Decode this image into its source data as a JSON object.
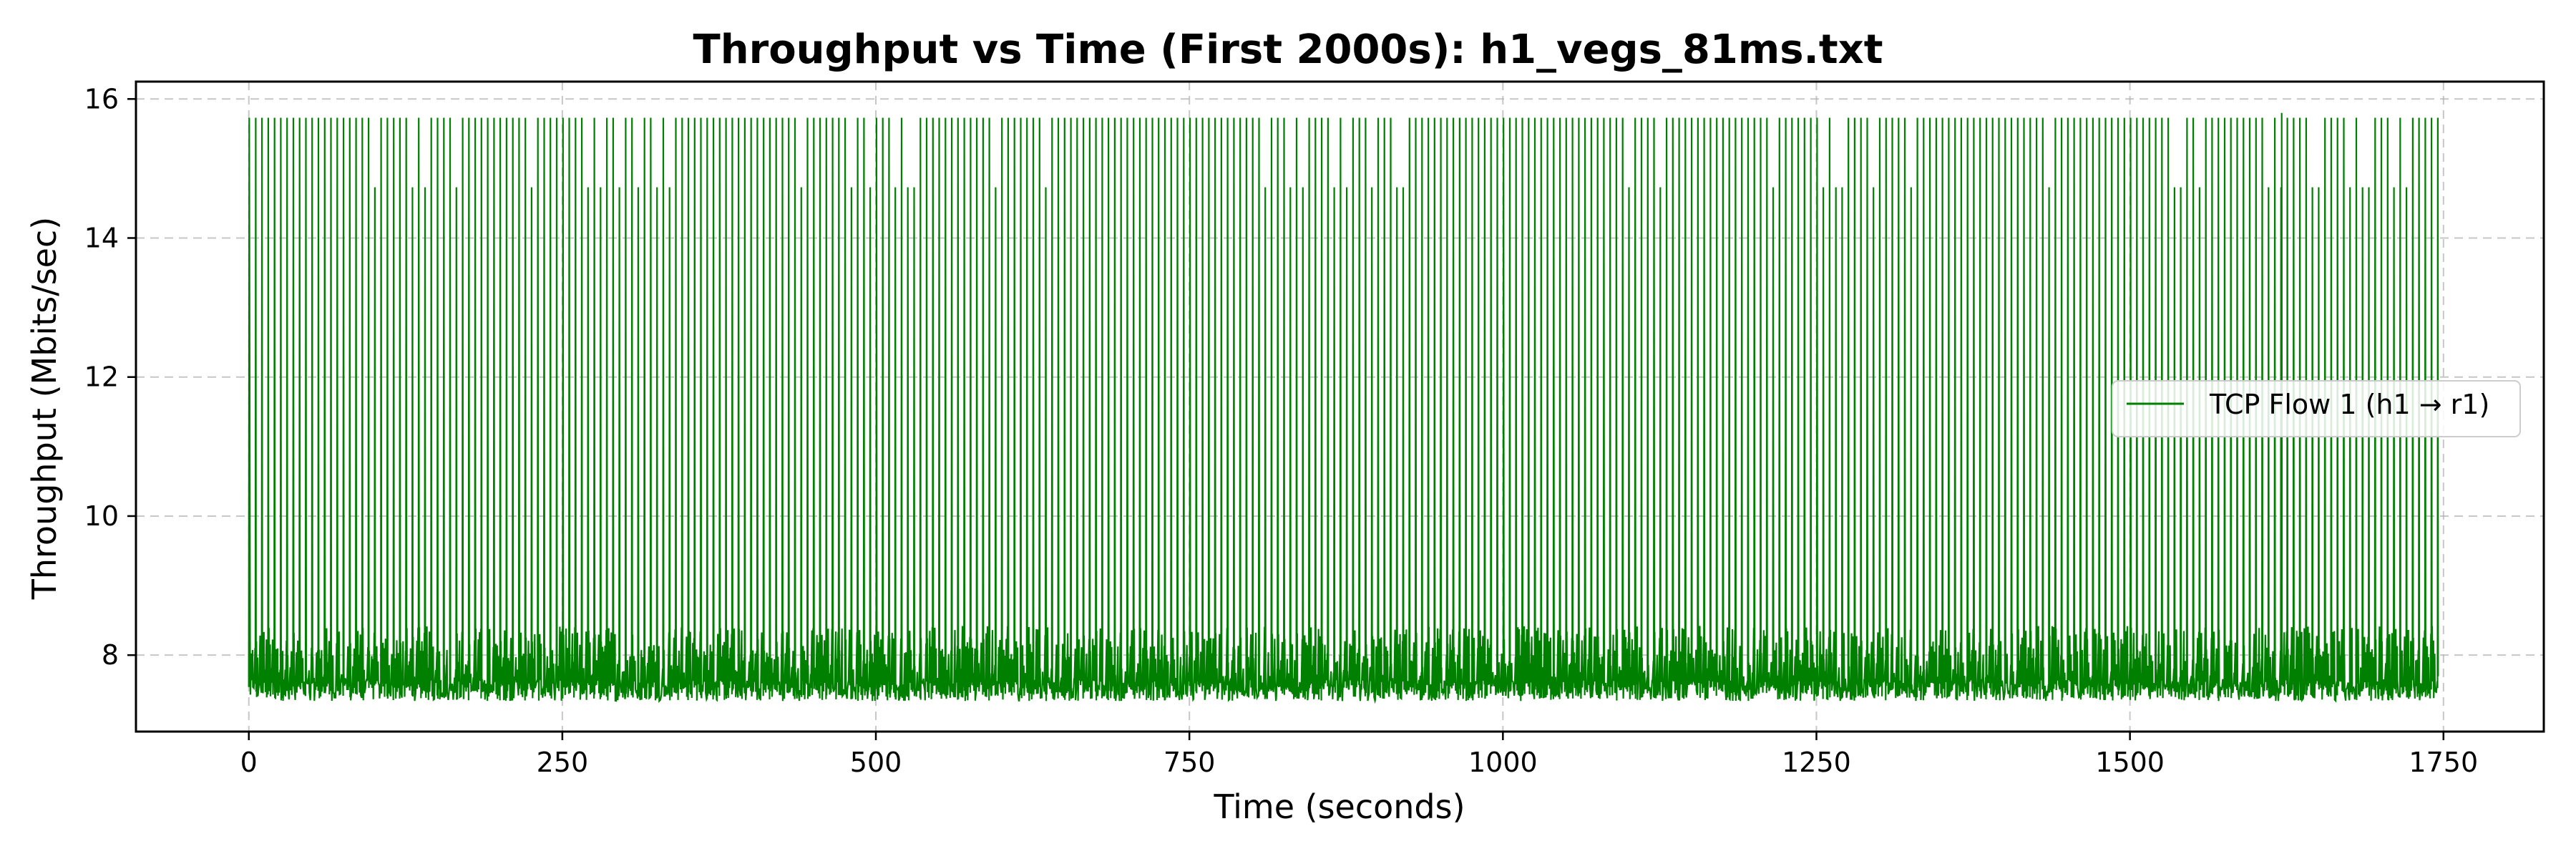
{
  "chart_data": {
    "type": "line",
    "title": "Throughput vs Time (First 2000s): h1_vegs_81ms.txt",
    "xlabel": "Time (seconds)",
    "ylabel": "Throughput (Mbits/sec)",
    "xlim": [
      -90,
      1830
    ],
    "ylim": [
      6.9,
      16.25
    ],
    "xticks": [
      0,
      250,
      500,
      750,
      1000,
      1250,
      1500,
      1750
    ],
    "yticks": [
      8,
      10,
      12,
      14,
      16
    ],
    "grid": true,
    "legend_position": "center-right",
    "series": [
      {
        "name": "TCP Flow 1 (h1 → r1)",
        "color": "#008000",
        "x_range": [
          0,
          1745
        ],
        "max": 15.73,
        "min": 7.34,
        "low_band_top": 8.42,
        "alternate_peak": 14.73,
        "outlier_peak": {
          "x": 1621,
          "y": 15.8
        }
      }
    ]
  }
}
